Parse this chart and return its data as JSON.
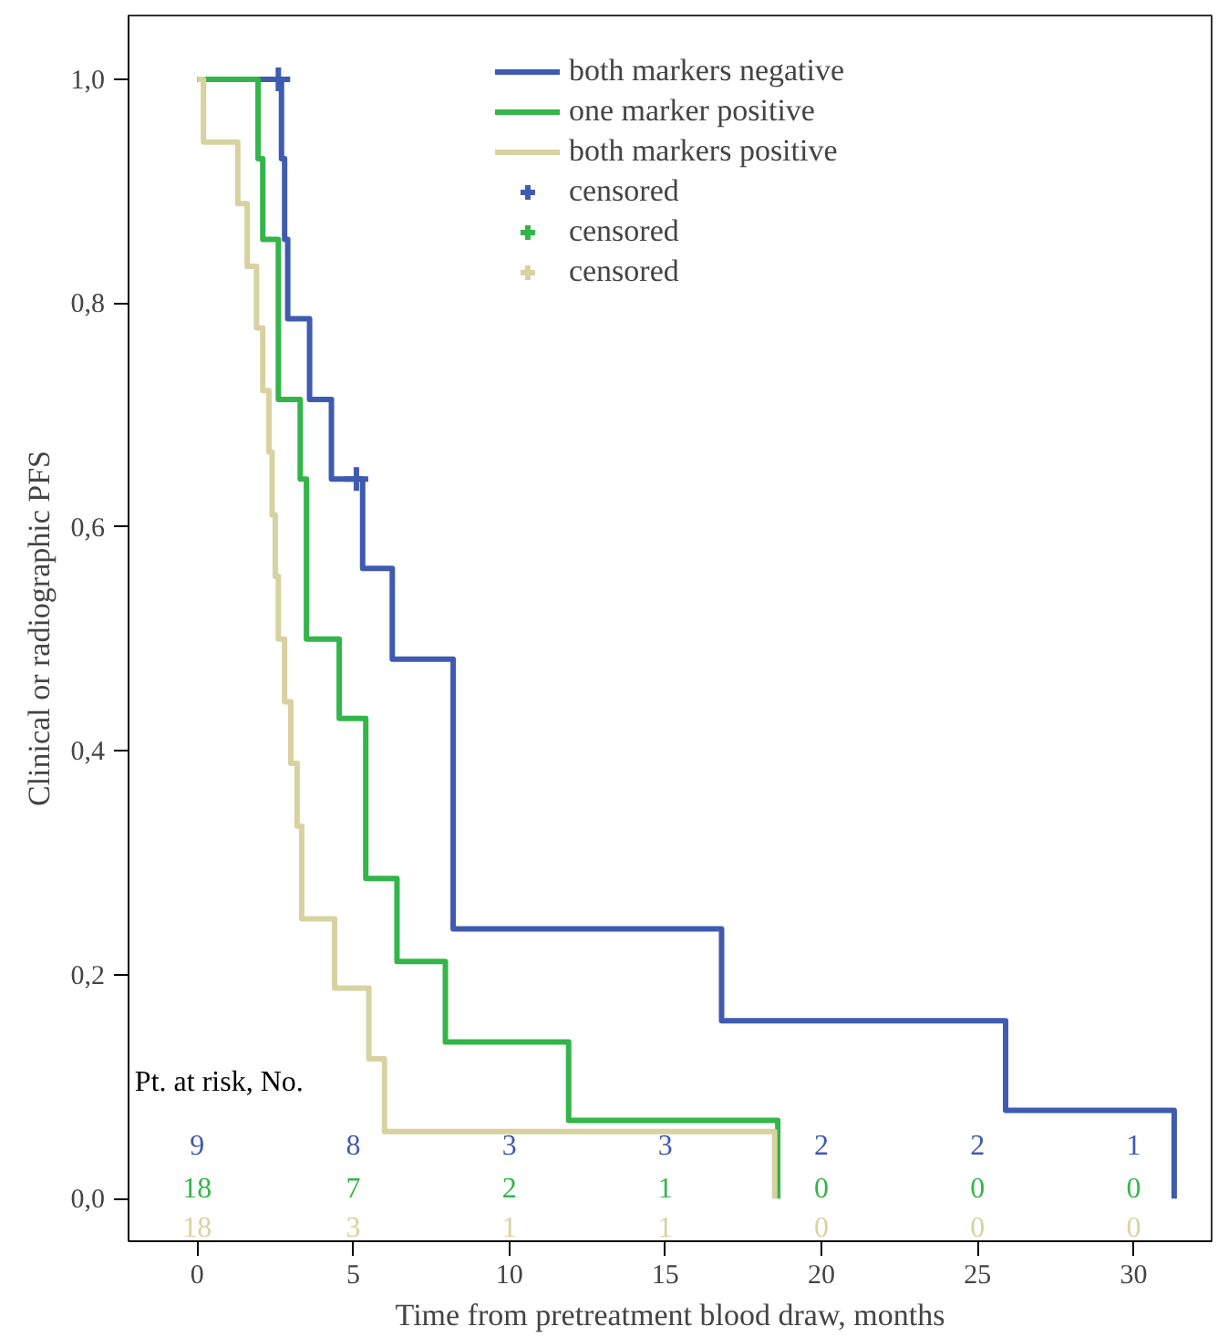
{
  "chart_data": {
    "type": "step",
    "xlabel": "Time from pretreatment blood draw, months",
    "ylabel": "Clinical or radiographic PFS",
    "xlim": [
      -2.2,
      32.5
    ],
    "ylim": [
      -0.038,
      1.057
    ],
    "xticks": [
      0,
      5,
      10,
      15,
      20,
      25,
      30
    ],
    "yticks": [
      {
        "value": 0,
        "label": "0,0"
      },
      {
        "value": 0.2,
        "label": "0,2"
      },
      {
        "value": 0.4,
        "label": "0,4"
      },
      {
        "value": 0.6,
        "label": "0,6"
      },
      {
        "value": 0.8,
        "label": "0,8"
      },
      {
        "value": 1.0,
        "label": "1,0"
      }
    ],
    "grid": false,
    "legend": "top",
    "line_style": "solid",
    "series": [
      {
        "name": "both markers negative",
        "color": "#3f5bb0",
        "x": [
          0,
          2.7,
          2.8,
          2.9,
          3.6,
          4.3,
          5.3,
          6.25,
          8.2,
          16.8,
          25.9,
          31.3
        ],
        "values": [
          1.0,
          0.929,
          0.857,
          0.786,
          0.714,
          0.643,
          0.563,
          0.482,
          0.241,
          0.159,
          0.079,
          0.0
        ]
      },
      {
        "name": "one marker positive",
        "color": "#33b54a",
        "x": [
          0,
          1.95,
          2.1,
          2.6,
          3.3,
          3.5,
          4.55,
          5.4,
          6.4,
          7.95,
          11.9,
          18.6
        ],
        "values": [
          1.0,
          0.929,
          0.857,
          0.714,
          0.643,
          0.5,
          0.429,
          0.286,
          0.212,
          0.14,
          0.07,
          0.0
        ]
      },
      {
        "name": "both markers positive",
        "color": "#d8d2a0",
        "x": [
          0,
          0.2,
          1.3,
          1.6,
          1.9,
          2.1,
          2.3,
          2.4,
          2.5,
          2.6,
          2.8,
          3.0,
          3.2,
          3.35,
          4.4,
          5.5,
          6.0,
          18.5
        ],
        "values": [
          1.0,
          0.944,
          0.889,
          0.833,
          0.778,
          0.722,
          0.667,
          0.611,
          0.556,
          0.5,
          0.444,
          0.389,
          0.333,
          0.25,
          0.188,
          0.125,
          0.06,
          0.0
        ]
      },
      {
        "name": "censored",
        "color": "#3f5bb0",
        "type": "scatter",
        "marker": "cross",
        "x": [
          2.6,
          5.1
        ],
        "values": [
          1.0,
          0.643
        ]
      },
      {
        "name": "censored",
        "color": "#33b54a",
        "type": "scatter",
        "marker": "cross"
      },
      {
        "name": "censored",
        "color": "#d8d2a0",
        "type": "scatter",
        "marker": "cross"
      }
    ],
    "annotations": [
      "Pt. at risk, No.",
      "9",
      "8",
      "3",
      "3",
      "2",
      "2",
      "1",
      "18",
      "7",
      "2",
      "1",
      "0",
      "0",
      "0",
      "18",
      "3",
      "1",
      "1",
      "0",
      "0",
      "0"
    ]
  }
}
